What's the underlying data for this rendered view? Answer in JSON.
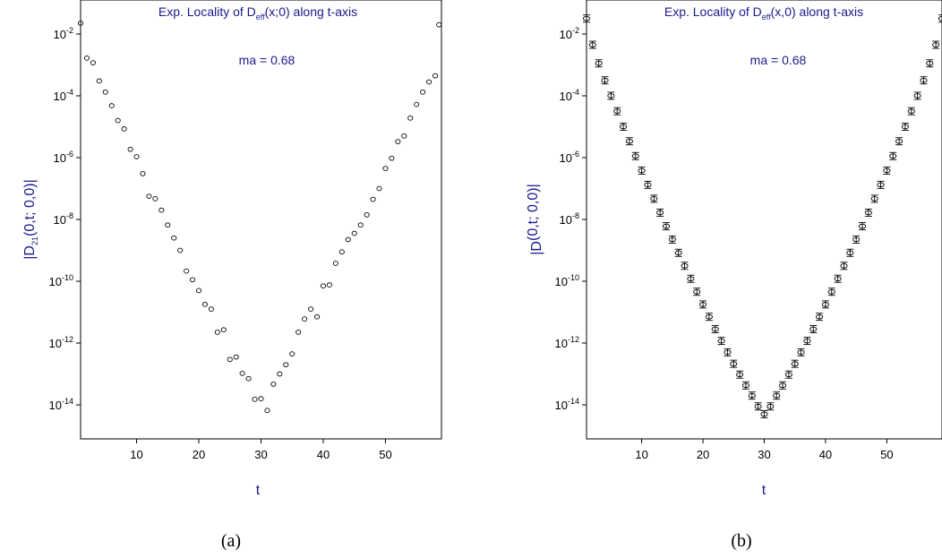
{
  "colors": {
    "title": "#1a1a8c",
    "axis_title": "#1a1a8c",
    "marker": "#000000"
  },
  "captions": [
    "(a)",
    "(b)"
  ],
  "chart_data": [
    {
      "type": "scatter",
      "marker": "open-circle",
      "title": "Exp. Locality of D_eff(x;0) along t-axis",
      "title_parts": {
        "pre": "Exp. Locality of D",
        "sub": "eff",
        "post": "(x;0) along t-axis"
      },
      "annotation": "ma = 0.68",
      "xlabel": "t",
      "ylabel": "|D21(0,t; 0,0)|",
      "ylabel_parts": {
        "pre": "|D",
        "sub": "21",
        "mid": "(0,t; 0,0)|"
      },
      "y_scale": "log",
      "xlim": [
        1,
        59
      ],
      "ylim_exp": [
        -15.1,
        -0.9
      ],
      "x_ticks": [
        10,
        20,
        30,
        40,
        50
      ],
      "y_ticks": [
        "10^-2",
        "10^-4",
        "10^-6",
        "10^-8",
        "10^-10",
        "10^-12",
        "10^-14"
      ],
      "y_tick_exps": [
        -2,
        -4,
        -6,
        -8,
        -10,
        -12,
        -14
      ],
      "x": [
        1,
        2,
        3,
        4,
        5,
        6,
        7,
        8,
        9,
        10,
        11,
        12,
        13,
        14,
        15,
        16,
        17,
        18,
        19,
        20,
        21,
        22,
        23,
        24,
        25,
        26,
        27,
        28,
        29,
        30,
        31,
        32,
        33,
        34,
        35,
        36,
        37,
        38,
        39,
        40,
        41,
        42,
        43,
        44,
        45,
        46,
        47,
        48,
        49,
        50,
        51,
        52,
        53,
        54,
        55,
        56,
        57,
        58
      ],
      "y_log10": [
        -1.65,
        -2.78,
        -2.93,
        -3.52,
        -3.88,
        -4.32,
        -4.8,
        -5.07,
        -5.73,
        -5.97,
        -6.52,
        -7.25,
        -7.33,
        -7.7,
        -8.18,
        -8.6,
        -9.0,
        -9.67,
        -9.95,
        -10.3,
        -10.75,
        -10.9,
        -11.65,
        -11.57,
        -12.53,
        -12.45,
        -12.98,
        -13.15,
        -13.82,
        -13.8,
        -14.18,
        -13.33,
        -13.0,
        -12.7,
        -12.35,
        -11.65,
        -11.22,
        -10.9,
        -11.15,
        -10.15,
        -10.12,
        -9.42,
        -9.05,
        -8.65,
        -8.45,
        -8.18,
        -7.85,
        -7.35,
        -7.0,
        -6.35,
        -6.02,
        -5.48,
        -5.3,
        -4.72,
        -4.28,
        -3.88,
        -3.55,
        -3.35
      ],
      "endpoint_extra": {
        "x": 58.6,
        "y_log10": -1.7
      }
    },
    {
      "type": "scatter",
      "marker": "open-circle-errorbar",
      "title": "Exp. Locality of D_eff(x,0) along t-axis",
      "title_parts": {
        "pre": "Exp. Locality of D",
        "sub": "eff",
        "post": "(x,0) along t-axis"
      },
      "annotation": "ma = 0.68",
      "xlabel": "t",
      "ylabel": "|D(0,t; 0,0)|",
      "ylabel_parts": {
        "pre": "|D",
        "sub": "",
        "mid": "(0,t; 0,0)|"
      },
      "y_scale": "log",
      "xlim": [
        1,
        59
      ],
      "ylim_exp": [
        -15.1,
        -0.9
      ],
      "x_ticks": [
        10,
        20,
        30,
        40,
        50
      ],
      "y_ticks": [
        "10^-2",
        "10^-4",
        "10^-6",
        "10^-8",
        "10^-10",
        "10^-12",
        "10^-14"
      ],
      "y_tick_exps": [
        -2,
        -4,
        -6,
        -8,
        -10,
        -12,
        -14
      ],
      "x": [
        1,
        2,
        3,
        4,
        5,
        6,
        7,
        8,
        9,
        10,
        11,
        12,
        13,
        14,
        15,
        16,
        17,
        18,
        19,
        20,
        21,
        22,
        23,
        24,
        25,
        26,
        27,
        28,
        29,
        30,
        31,
        32,
        33,
        34,
        35,
        36,
        37,
        38,
        39,
        40,
        41,
        42,
        43,
        44,
        45,
        46,
        47,
        48,
        49,
        50,
        51,
        52,
        53,
        54,
        55,
        56,
        57,
        58,
        59
      ],
      "y_log10": [
        -1.5,
        -2.35,
        -2.95,
        -3.5,
        -4.0,
        -4.5,
        -5.0,
        -5.47,
        -5.95,
        -6.42,
        -6.88,
        -7.33,
        -7.78,
        -8.22,
        -8.65,
        -9.08,
        -9.5,
        -9.92,
        -10.34,
        -10.75,
        -11.15,
        -11.55,
        -11.93,
        -12.3,
        -12.67,
        -13.02,
        -13.37,
        -13.7,
        -14.05,
        -14.3,
        -14.05,
        -13.7,
        -13.37,
        -13.02,
        -12.67,
        -12.3,
        -11.93,
        -11.55,
        -11.15,
        -10.75,
        -10.34,
        -9.92,
        -9.5,
        -9.08,
        -8.65,
        -8.22,
        -7.78,
        -7.33,
        -6.88,
        -6.42,
        -5.95,
        -5.47,
        -5.0,
        -4.5,
        -4.0,
        -3.5,
        -2.95,
        -2.35,
        -1.5
      ]
    }
  ]
}
